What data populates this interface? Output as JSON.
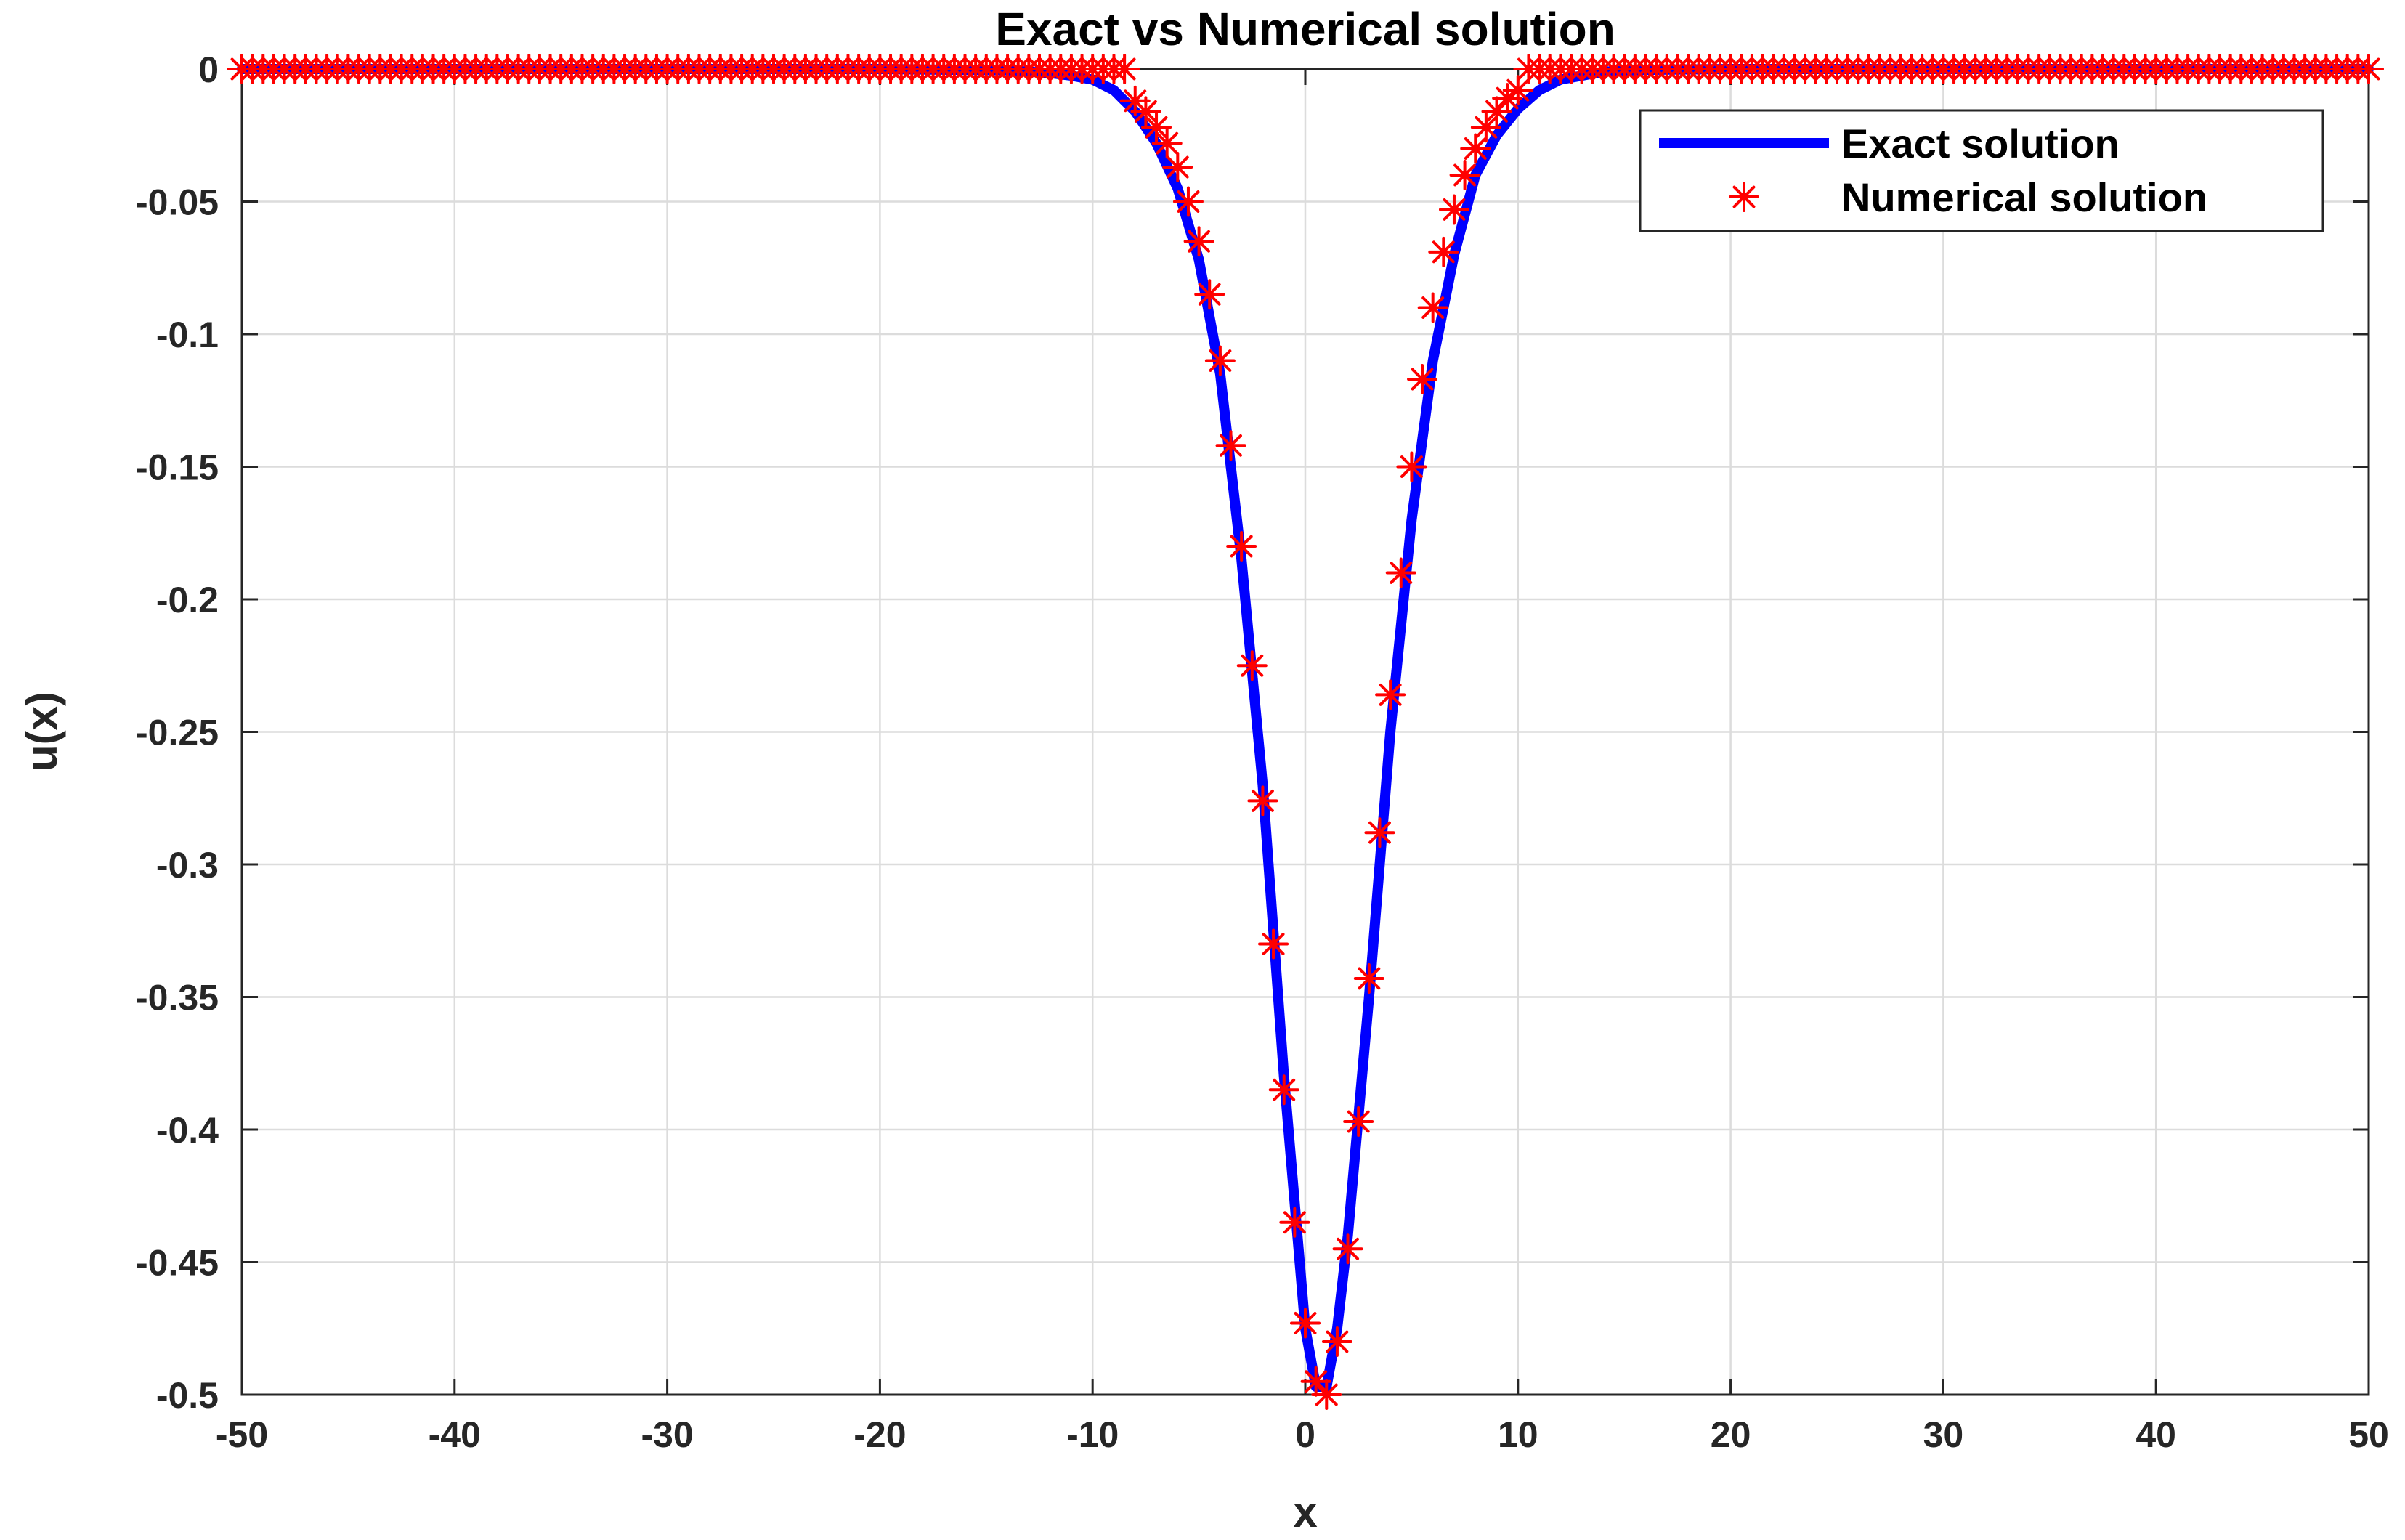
{
  "chart_data": {
    "type": "line",
    "title": "Exact vs Numerical solution",
    "xlabel": "x",
    "ylabel": "u(x)",
    "xlim": [
      -50,
      50
    ],
    "ylim": [
      -0.5,
      0
    ],
    "xticks": [
      -50,
      -40,
      -30,
      -20,
      -10,
      0,
      10,
      20,
      30,
      40,
      50
    ],
    "yticks": [
      0,
      -0.05,
      -0.1,
      -0.15,
      -0.2,
      -0.25,
      -0.3,
      -0.35,
      -0.4,
      -0.45,
      -0.5
    ],
    "xtick_labels": [
      "-50",
      "-40",
      "-30",
      "-20",
      "-10",
      "0",
      "10",
      "20",
      "30",
      "40",
      "50"
    ],
    "ytick_labels": [
      "0",
      "-0.05",
      "-0.1",
      "-0.15",
      "-0.2",
      "-0.25",
      "-0.3",
      "-0.35",
      "-0.4",
      "-0.45",
      "-0.5"
    ],
    "grid": true,
    "legend_position": "top-right",
    "series": [
      {
        "name": "Exact solution",
        "style": "line",
        "color": "#0000ff",
        "x": [
          -50,
          -20,
          -14,
          -12,
          -11,
          -10,
          -9,
          -8,
          -7,
          -6,
          -5,
          -4,
          -3,
          -2,
          -1,
          0,
          0.5,
          1,
          1.5,
          2,
          3,
          4,
          5,
          6,
          7,
          8,
          9,
          10,
          11,
          12,
          14,
          16,
          20,
          50
        ],
        "y": [
          0,
          0,
          -0.0005,
          -0.0015,
          -0.0025,
          -0.004,
          -0.008,
          -0.016,
          -0.028,
          -0.045,
          -0.072,
          -0.115,
          -0.185,
          -0.27,
          -0.38,
          -0.475,
          -0.497,
          -0.497,
          -0.475,
          -0.44,
          -0.35,
          -0.25,
          -0.17,
          -0.11,
          -0.07,
          -0.04,
          -0.025,
          -0.015,
          -0.008,
          -0.004,
          -0.001,
          -0.0003,
          0,
          0
        ]
      },
      {
        "name": "Numerical solution",
        "style": "markers",
        "marker": "asterisk",
        "color": "#ff0000",
        "x": [
          -8,
          -7.5,
          -7,
          -6.5,
          -6,
          -5.5,
          -5,
          -4.5,
          -4,
          -3.5,
          -3,
          -2.5,
          -2,
          -1.5,
          -1,
          -0.5,
          0,
          0.5,
          1,
          1.5,
          2,
          2.5,
          3,
          3.5,
          4,
          4.5,
          5,
          5.5,
          6,
          6.5,
          7,
          7.5,
          8,
          8.5,
          9,
          9.5,
          10
        ],
        "y": [
          -0.012,
          -0.016,
          -0.022,
          -0.028,
          -0.037,
          -0.05,
          -0.065,
          -0.085,
          -0.11,
          -0.142,
          -0.18,
          -0.225,
          -0.276,
          -0.33,
          -0.385,
          -0.435,
          -0.473,
          -0.495,
          -0.5,
          -0.48,
          -0.445,
          -0.397,
          -0.343,
          -0.288,
          -0.236,
          -0.19,
          -0.15,
          -0.117,
          -0.09,
          -0.069,
          -0.053,
          -0.04,
          -0.03,
          -0.022,
          -0.016,
          -0.011,
          -0.008
        ]
      }
    ]
  }
}
